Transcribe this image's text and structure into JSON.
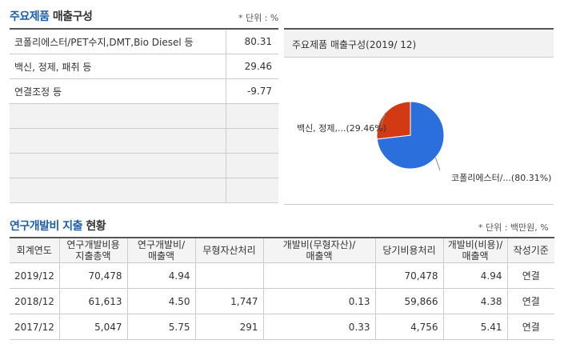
{
  "product": {
    "title_hl": "주요제품",
    "title_rest": " 매출구성",
    "unit": "* 단위 : %",
    "rows": [
      {
        "name": "코폴리에스터/PET수지,DMT,Bio Diesel 등",
        "value": "80.31"
      },
      {
        "name": "백신, 정제, 패취 등",
        "value": "29.46"
      },
      {
        "name": "연결조정 등",
        "value": "-9.77"
      }
    ]
  },
  "chart": {
    "title": "주요제품 매출구성(2019/ 12)"
  },
  "chart_data": {
    "type": "pie",
    "slices": [
      {
        "label": "코폴리에스터/...(80.31%)",
        "value": 80.31,
        "color": "#2a6fdb"
      },
      {
        "label": "백신, 정제,...(29.46%)",
        "value": 29.46,
        "color": "#d13a12"
      }
    ]
  },
  "rnd": {
    "title_hl": "연구개발비 지출",
    "title_rest": " 현황",
    "unit": "* 단위 : 백만원, %",
    "headers": [
      [
        "회계연도"
      ],
      [
        "연구개발비용",
        "지출총액"
      ],
      [
        "연구개발비/",
        "매출액"
      ],
      [
        "무형자산처리"
      ],
      [
        "개발비(무형자산)/",
        "매출액"
      ],
      [
        "당기비용처리"
      ],
      [
        "개발비(비용)/",
        "매출액"
      ],
      [
        "작성기준"
      ]
    ],
    "rows": [
      [
        "2019/12",
        "70,478",
        "4.94",
        "",
        "",
        "70,478",
        "4.94",
        "연결"
      ],
      [
        "2018/12",
        "61,613",
        "4.50",
        "1,747",
        "0.13",
        "59,866",
        "4.38",
        "연결"
      ],
      [
        "2017/12",
        "5,047",
        "5.75",
        "291",
        "0.33",
        "4,756",
        "5.41",
        "연결"
      ]
    ]
  }
}
